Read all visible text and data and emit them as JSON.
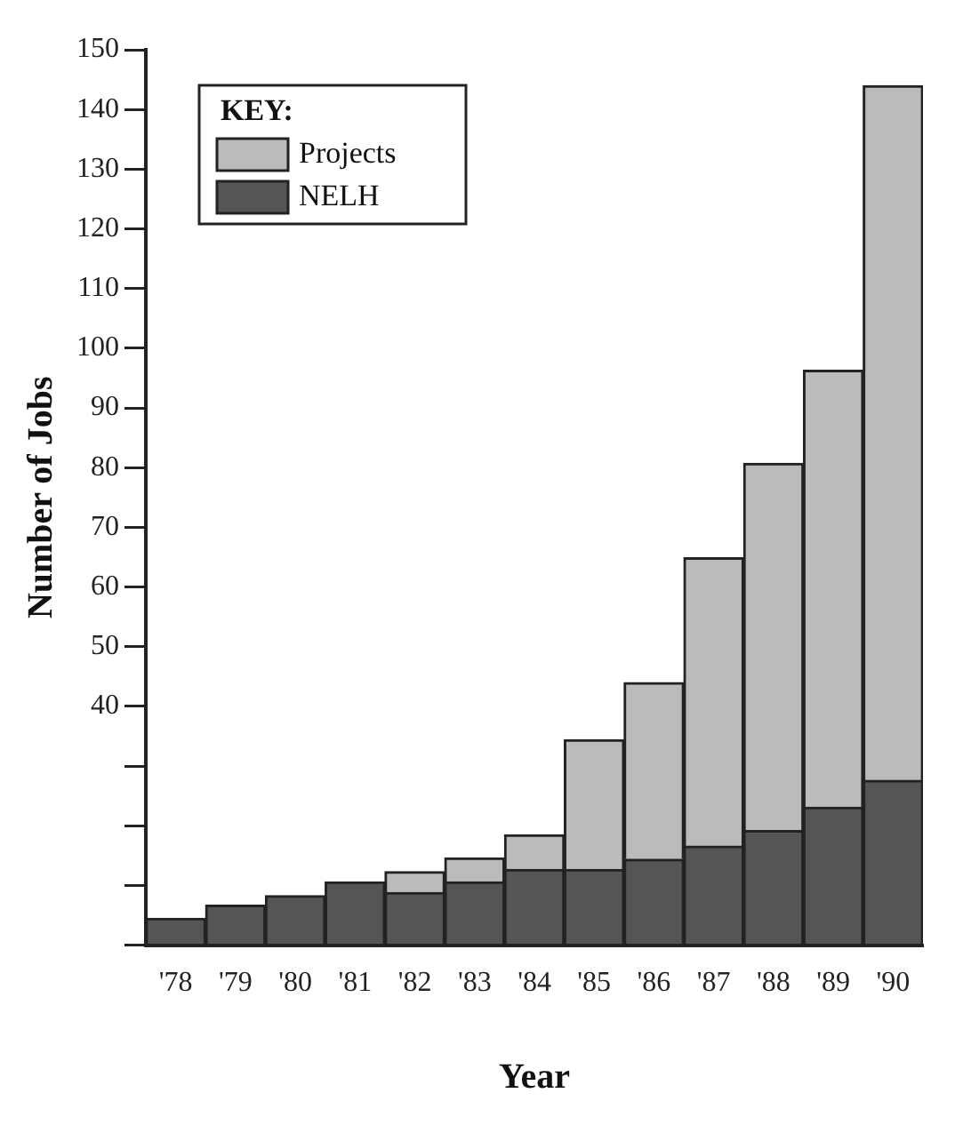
{
  "chart_data": {
    "type": "bar",
    "stacked": true,
    "xlabel": "Year",
    "ylabel": "Number of Jobs",
    "legend_title": "KEY:",
    "legend": "top left",
    "grid": false,
    "categories": [
      "'78",
      "'79",
      "'80",
      "'81",
      "'82",
      "'83",
      "'84",
      "'85",
      "'86",
      "'87",
      "'88",
      "'89",
      "'90"
    ],
    "ylim": [
      0,
      150
    ],
    "yticks": [
      {
        "value": 0,
        "label": null
      },
      {
        "value": 10,
        "label": null
      },
      {
        "value": 20,
        "label": null
      },
      {
        "value": 30,
        "label": null
      },
      40,
      50,
      60,
      70,
      80,
      90,
      100,
      110,
      120,
      130,
      140,
      150
    ],
    "series": [
      {
        "name": "NELH",
        "color": "#555555",
        "values": [
          4.5,
          6.7,
          8.3,
          10.6,
          8.8,
          10.6,
          12.7,
          12.7,
          14.4,
          16.6,
          19.2,
          23.1,
          27.6
        ]
      },
      {
        "name": "Projects",
        "color": "#bbbbbb",
        "values": [
          null,
          null,
          null,
          null,
          3.5,
          4,
          5.8,
          21.7,
          29.6,
          48.3,
          61.5,
          73.2,
          116.4
        ]
      }
    ]
  }
}
